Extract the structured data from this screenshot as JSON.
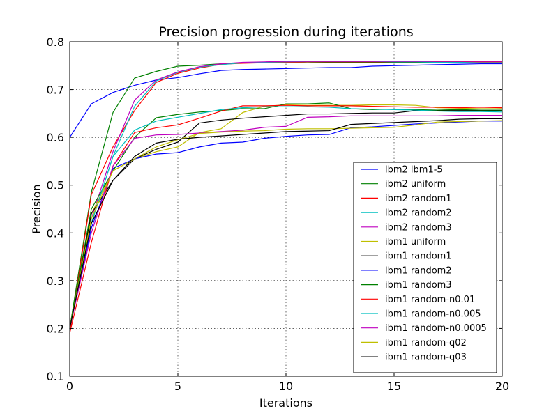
{
  "chart_data": {
    "type": "line",
    "title": "Precision progression during iterations",
    "xlabel": "Iterations",
    "ylabel": "Precision",
    "xlim": [
      0,
      20
    ],
    "ylim": [
      0.1,
      0.8
    ],
    "xticks": [
      0,
      5,
      10,
      15,
      20
    ],
    "yticks": [
      0.1,
      0.2,
      0.3,
      0.4,
      0.5,
      0.6,
      0.7,
      0.8
    ],
    "xtick_labels": [
      "0",
      "5",
      "10",
      "15",
      "20"
    ],
    "ytick_labels": [
      "0.1",
      "0.2",
      "0.3",
      "0.4",
      "0.5",
      "0.6",
      "0.7",
      "0.8"
    ],
    "grid": true,
    "legend_position": "lower-right",
    "x": [
      0,
      1,
      2,
      3,
      4,
      5,
      6,
      7,
      8,
      9,
      10,
      11,
      12,
      13,
      14,
      15,
      16,
      17,
      18,
      19,
      20
    ],
    "series": [
      {
        "name": "ibm2 ibm1-5",
        "color": "#0000ff",
        "values": [
          0.6,
          0.67,
          0.694,
          0.709,
          0.72,
          0.725,
          0.733,
          0.74,
          0.742,
          0.743,
          0.744,
          0.745,
          0.746,
          0.746,
          0.749,
          0.75,
          0.751,
          0.752,
          0.753,
          0.754,
          0.754
        ]
      },
      {
        "name": "ibm2 uniform",
        "color": "#008000",
        "values": [
          0.2,
          0.485,
          0.652,
          0.724,
          0.738,
          0.749,
          0.751,
          0.754,
          0.756,
          0.756,
          0.756,
          0.756,
          0.757,
          0.757,
          0.757,
          0.757,
          0.757,
          0.756,
          0.756,
          0.756,
          0.756
        ]
      },
      {
        "name": "ibm2 random1",
        "color": "#ff0000",
        "values": [
          0.19,
          0.48,
          0.58,
          0.656,
          0.715,
          0.734,
          0.745,
          0.753,
          0.755,
          0.756,
          0.757,
          0.758,
          0.758,
          0.758,
          0.758,
          0.758,
          0.758,
          0.758,
          0.758,
          0.758,
          0.758
        ]
      },
      {
        "name": "ibm2 random2",
        "color": "#00bfbf",
        "values": [
          0.2,
          0.42,
          0.56,
          0.665,
          0.718,
          0.736,
          0.747,
          0.752,
          0.756,
          0.757,
          0.758,
          0.759,
          0.759,
          0.759,
          0.759,
          0.758,
          0.758,
          0.757,
          0.757,
          0.756,
          0.756
        ]
      },
      {
        "name": "ibm2 random3",
        "color": "#bf00bf",
        "values": [
          0.2,
          0.43,
          0.57,
          0.678,
          0.72,
          0.737,
          0.748,
          0.754,
          0.757,
          0.758,
          0.759,
          0.759,
          0.759,
          0.759,
          0.759,
          0.759,
          0.759,
          0.759,
          0.759,
          0.759,
          0.759
        ]
      },
      {
        "name": "ibm1 uniform",
        "color": "#bfbf00",
        "values": [
          0.2,
          0.44,
          0.53,
          0.555,
          0.57,
          0.58,
          0.61,
          0.618,
          0.652,
          0.665,
          0.668,
          0.667,
          0.667,
          0.667,
          0.668,
          0.668,
          0.667,
          0.662,
          0.661,
          0.66,
          0.66
        ]
      },
      {
        "name": "ibm1 random1",
        "color": "#000000",
        "values": [
          0.2,
          0.44,
          0.51,
          0.555,
          0.575,
          0.59,
          0.63,
          0.636,
          0.64,
          0.643,
          0.646,
          0.649,
          0.649,
          0.65,
          0.651,
          0.651,
          0.656,
          0.656,
          0.656,
          0.656,
          0.656
        ]
      },
      {
        "name": "ibm1 random2",
        "color": "#0000ff",
        "values": [
          0.2,
          0.41,
          0.535,
          0.555,
          0.565,
          0.568,
          0.58,
          0.588,
          0.59,
          0.598,
          0.602,
          0.605,
          0.606,
          0.62,
          0.622,
          0.625,
          0.628,
          0.63,
          0.632,
          0.634,
          0.634
        ]
      },
      {
        "name": "ibm1 random3",
        "color": "#008000",
        "values": [
          0.2,
          0.45,
          0.53,
          0.6,
          0.641,
          0.648,
          0.653,
          0.656,
          0.66,
          0.66,
          0.67,
          0.67,
          0.672,
          0.66,
          0.658,
          0.659,
          0.658,
          0.657,
          0.658,
          0.657,
          0.657
        ]
      },
      {
        "name": "ibm1 random-n0.01",
        "color": "#ff0000",
        "values": [
          0.19,
          0.38,
          0.54,
          0.61,
          0.62,
          0.626,
          0.64,
          0.655,
          0.666,
          0.666,
          0.667,
          0.666,
          0.666,
          0.666,
          0.665,
          0.664,
          0.663,
          0.663,
          0.662,
          0.663,
          0.662
        ]
      },
      {
        "name": "ibm1 random-n0.005",
        "color": "#00bfbf",
        "values": [
          0.2,
          0.42,
          0.56,
          0.615,
          0.634,
          0.642,
          0.65,
          0.658,
          0.662,
          0.664,
          0.664,
          0.664,
          0.663,
          0.66,
          0.659,
          0.658,
          0.657,
          0.655,
          0.654,
          0.654,
          0.653
        ]
      },
      {
        "name": "ibm1 random-n0.0005",
        "color": "#bf00bf",
        "values": [
          0.2,
          0.4,
          0.54,
          0.598,
          0.605,
          0.606,
          0.609,
          0.612,
          0.615,
          0.621,
          0.623,
          0.642,
          0.643,
          0.645,
          0.645,
          0.645,
          0.645,
          0.645,
          0.646,
          0.646,
          0.646
        ]
      },
      {
        "name": "ibm1 random-q02",
        "color": "#bfbf00",
        "values": [
          0.2,
          0.43,
          0.53,
          0.555,
          0.58,
          0.595,
          0.608,
          0.611,
          0.613,
          0.614,
          0.617,
          0.618,
          0.618,
          0.619,
          0.62,
          0.621,
          0.626,
          0.632,
          0.633,
          0.634,
          0.635
        ]
      },
      {
        "name": "ibm1 random-q03",
        "color": "#000000",
        "values": [
          0.2,
          0.42,
          0.51,
          0.56,
          0.588,
          0.596,
          0.6,
          0.603,
          0.606,
          0.609,
          0.612,
          0.613,
          0.614,
          0.627,
          0.629,
          0.631,
          0.633,
          0.635,
          0.638,
          0.639,
          0.639
        ]
      }
    ]
  }
}
